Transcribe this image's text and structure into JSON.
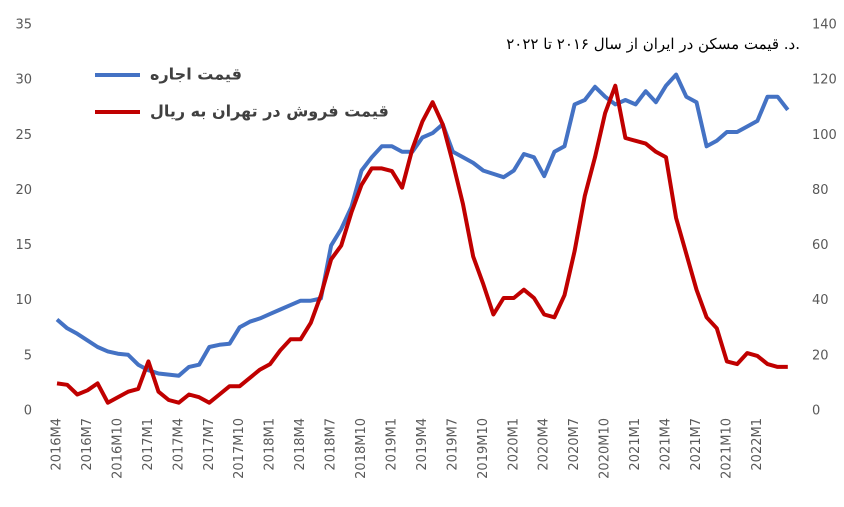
{
  "chart_data": {
    "type": "line",
    "title": "د. قیمت مسکن در ایران از سال ۲۰۱۶ تا ۲۰۲۲.",
    "categories": [
      "2016M4",
      null,
      null,
      "2016M7",
      null,
      null,
      "2016M10",
      null,
      null,
      "2017M1",
      null,
      null,
      "2017M4",
      null,
      null,
      "2017M7",
      null,
      null,
      "2017M10",
      null,
      null,
      "2018M1",
      null,
      null,
      "2018M4",
      null,
      null,
      "2018M7",
      null,
      null,
      "2018M10",
      null,
      null,
      "2019M1",
      null,
      null,
      "2019M4",
      null,
      null,
      "2019M7",
      null,
      null,
      "2019M10",
      null,
      null,
      "2020M1",
      null,
      null,
      "2020M4",
      null,
      null,
      "2020M7",
      null,
      null,
      "2020M10",
      null,
      null,
      "2021M1",
      null,
      null,
      "2021M4",
      null,
      null,
      "2021M7",
      null,
      null,
      "2021M10",
      null,
      null,
      "2022M1",
      null,
      null,
      null
    ],
    "series": [
      {
        "name": "قیمت اجاره",
        "color": "#4472c4",
        "values": [
          8.3,
          7.5,
          7.0,
          6.4,
          5.8,
          5.4,
          5.2,
          5.1,
          4.2,
          3.7,
          3.4,
          3.3,
          3.2,
          4.0,
          4.2,
          5.8,
          6.0,
          6.1,
          7.6,
          8.1,
          8.4,
          8.8,
          9.2,
          9.6,
          10.0,
          10.0,
          10.2,
          15.0,
          16.5,
          18.5,
          21.8,
          23.0,
          24.0,
          24.0,
          23.5,
          23.5,
          24.8,
          25.2,
          26.0,
          23.5,
          23.0,
          22.5,
          21.8,
          21.5,
          21.2,
          21.8,
          23.3,
          23.0,
          21.3,
          23.5,
          24.0,
          27.8,
          28.2,
          29.4,
          28.5,
          27.8,
          28.2,
          27.8,
          29.0,
          28.0,
          29.5,
          30.5,
          28.5,
          28.0,
          24.0,
          24.5,
          25.3,
          25.3,
          25.8,
          26.3,
          28.5,
          28.5,
          27.3
        ]
      },
      {
        "name": "قیمت فروش در تهران به ریال",
        "color": "#c00000",
        "axis": "y2",
        "values": [
          10,
          9.5,
          6,
          7.5,
          10,
          3,
          5,
          7,
          8,
          18,
          7,
          4,
          3,
          6,
          5,
          3,
          6,
          9,
          9,
          12,
          15,
          17,
          22,
          26,
          26,
          32,
          42,
          55,
          60,
          72,
          82,
          88,
          88,
          87,
          81,
          95,
          105,
          112,
          104,
          90,
          75,
          56,
          46,
          35,
          41,
          41,
          44,
          41,
          35,
          34,
          42,
          58,
          78,
          92,
          108,
          118,
          99,
          98,
          97,
          94,
          92,
          70,
          57,
          44,
          34,
          30,
          18,
          17,
          21,
          20,
          17,
          16,
          16
        ]
      }
    ],
    "ylim": [
      0,
      35
    ],
    "yticks": [
      0,
      5,
      10,
      15,
      20,
      25,
      30,
      35
    ],
    "y2lim": [
      0,
      140
    ],
    "y2ticks": [
      0,
      20,
      40,
      60,
      80,
      100,
      120,
      140
    ],
    "grid": false,
    "legend": "top-left"
  }
}
